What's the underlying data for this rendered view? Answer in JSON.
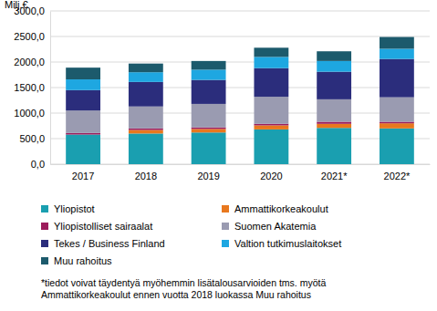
{
  "chart_data": {
    "type": "bar",
    "stacked": true,
    "grid": true,
    "legend": "bottom",
    "y_label": "Milj.€",
    "categories": [
      "2017",
      "2018",
      "2019",
      "2020",
      "2021*",
      "2022*"
    ],
    "ylim": [
      0,
      3000
    ],
    "yticks": [
      {
        "value": 0,
        "label": "0,0"
      },
      {
        "value": 500,
        "label": "500,0"
      },
      {
        "value": 1000,
        "label": "1000,0"
      },
      {
        "value": 1500,
        "label": "1500,0"
      },
      {
        "value": 2000,
        "label": "2000,0"
      },
      {
        "value": 2500,
        "label": "2500,0"
      },
      {
        "value": 3000,
        "label": "3000,0"
      }
    ],
    "series": [
      {
        "name": "Yliopistot",
        "color": "#1a9fb0",
        "values": [
          580,
          600,
          620,
          680,
          710,
          700
        ]
      },
      {
        "name": "Ammattikorkeakoulut",
        "color": "#e8781e",
        "values": [
          0,
          70,
          70,
          80,
          80,
          100
        ]
      },
      {
        "name": "Yliopistolliset sairaalat",
        "color": "#9c1c5c",
        "values": [
          30,
          30,
          30,
          30,
          40,
          30
        ]
      },
      {
        "name": "Suomen Akatemia",
        "color": "#9a9bb1",
        "values": [
          440,
          430,
          460,
          530,
          440,
          480
        ]
      },
      {
        "name": "Tekes / Business Finland",
        "color": "#2b2d7c",
        "values": [
          400,
          480,
          470,
          560,
          540,
          750
        ]
      },
      {
        "name": "Valtion tutkimuslaitokset",
        "color": "#1ea7e1",
        "values": [
          210,
          190,
          200,
          220,
          210,
          200
        ]
      },
      {
        "name": "Muu rahoitus",
        "color": "#1c5a6c",
        "values": [
          230,
          170,
          170,
          180,
          190,
          230
        ]
      }
    ],
    "annotations": [
      "*tiedot voivat täydentyä myöhemmin lisätalousarvioiden tms. myötä",
      "Ammattikorkeakoulut ennen vuotta 2018 luokassa Muu rahoitus"
    ]
  }
}
